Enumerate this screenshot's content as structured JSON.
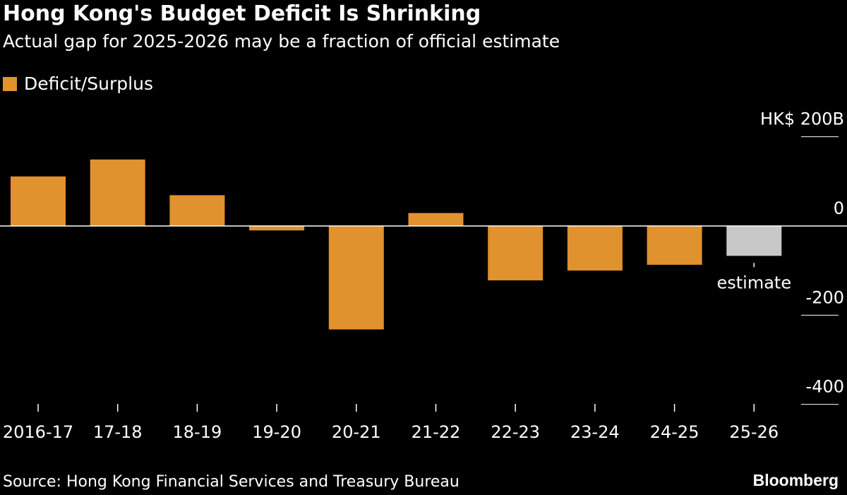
{
  "chart_data": {
    "type": "bar",
    "title": "Hong Kong's Budget Deficit Is Shrinking",
    "subtitle": "Actual gap for 2025-2026 may be a fraction of official estimate",
    "legend": [
      {
        "name": "Deficit/Surplus",
        "color": "#e0922e"
      }
    ],
    "legend_placement": "top-left",
    "categories": [
      "2016-17",
      "17-18",
      "18-19",
      "19-20",
      "20-21",
      "21-22",
      "22-23",
      "23-24",
      "24-25",
      "25-26"
    ],
    "values": [
      111,
      149,
      69,
      -10,
      -232,
      29,
      -122,
      -100,
      -87,
      -67
    ],
    "colors": [
      "#e0922e",
      "#e0922e",
      "#e0922e",
      "#e0922e",
      "#e0922e",
      "#e0922e",
      "#e0922e",
      "#e0922e",
      "#e0922e",
      "#c8c8c8"
    ],
    "ylim": [
      -400,
      200
    ],
    "yticks": [
      200,
      0,
      -200,
      -400
    ],
    "ytick_labels": [
      "HK$ 200B",
      "0",
      "-200",
      "-400"
    ],
    "y_axis_side": "right",
    "annotations": [
      {
        "category": "25-26",
        "text": "estimate"
      }
    ],
    "grid": false
  },
  "source": "Source: Hong Kong Financial Services and Treasury Bureau",
  "brand": "Bloomberg"
}
